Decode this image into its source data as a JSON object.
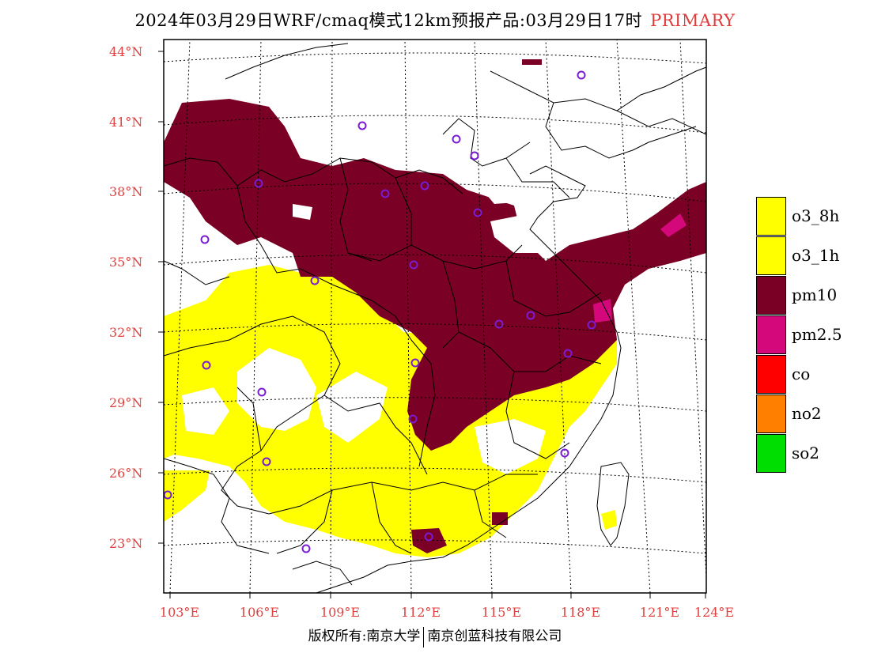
{
  "header": {
    "title": "2024年03月29日WRF/cmaq模式12km预报产品:03月29日17时",
    "tag": "PRIMARY"
  },
  "map": {
    "lat_labels": [
      "44°N",
      "41°N",
      "38°N",
      "35°N",
      "32°N",
      "29°N",
      "26°N",
      "23°N"
    ],
    "lon_labels": [
      "103°E",
      "106°E",
      "109°E",
      "112°E",
      "115°E",
      "118°E",
      "121°E",
      "124°E"
    ]
  },
  "legend": {
    "items": [
      {
        "label": "o3_8h",
        "color": "#ffff00"
      },
      {
        "label": "o3_1h",
        "color": "#ffff00"
      },
      {
        "label": "pm10",
        "color": "#7a0025"
      },
      {
        "label": "pm2.5",
        "color": "#d4087a"
      },
      {
        "label": "co",
        "color": "#ff0000"
      },
      {
        "label": "no2",
        "color": "#ff7f00"
      },
      {
        "label": "so2",
        "color": "#00dd00"
      }
    ]
  },
  "footer": {
    "left": "版权所有:南京大学",
    "right": "南京创蓝科技有限公司"
  }
}
